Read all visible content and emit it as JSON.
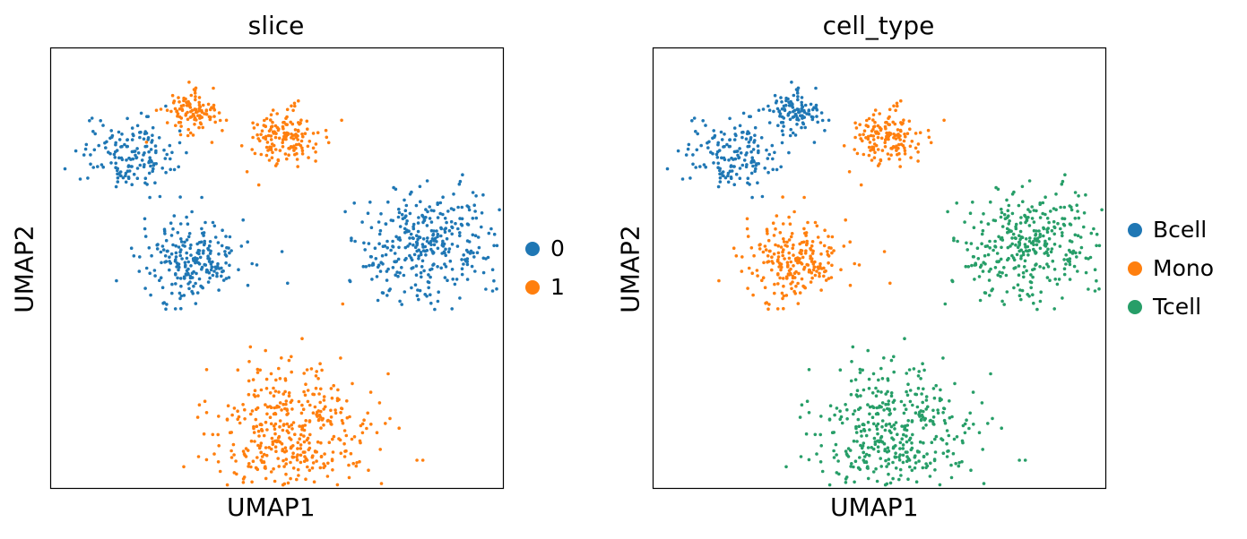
{
  "chart_data": [
    {
      "type": "scatter",
      "title": "slice",
      "xlabel": "UMAP1",
      "ylabel": "UMAP2",
      "grid": false,
      "legend_placement": "right",
      "legend": [
        {
          "label": "0",
          "color": "#1f77b4"
        },
        {
          "label": "1",
          "color": "#ff7f0e"
        }
      ],
      "clusters": [
        {
          "name": "top-left",
          "color": "#1f77b4",
          "x": 0.17,
          "y": 0.76,
          "spread": 0.05,
          "n": 160
        },
        {
          "name": "top-small",
          "color": "#ff7f0e",
          "x": 0.31,
          "y": 0.85,
          "spread": 0.03,
          "n": 110
        },
        {
          "name": "top-mid",
          "color": "#ff7f0e",
          "x": 0.52,
          "y": 0.8,
          "spread": 0.04,
          "n": 150
        },
        {
          "name": "mid-left",
          "color": "#1f77b4",
          "x": 0.31,
          "y": 0.52,
          "spread": 0.06,
          "n": 230
        },
        {
          "name": "right",
          "color": "#1f77b4",
          "x": 0.84,
          "y": 0.55,
          "spread": 0.08,
          "n": 360
        },
        {
          "name": "bottom",
          "color": "#ff7f0e",
          "x": 0.53,
          "y": 0.13,
          "spread": 0.09,
          "n": 420
        }
      ]
    },
    {
      "type": "scatter",
      "title": "cell_type",
      "xlabel": "UMAP1",
      "ylabel": "UMAP2",
      "grid": false,
      "legend_placement": "right",
      "legend": [
        {
          "label": "Bcell",
          "color": "#1f77b4"
        },
        {
          "label": "Mono",
          "color": "#ff7f0e"
        },
        {
          "label": "Tcell",
          "color": "#279e68"
        }
      ],
      "clusters": [
        {
          "name": "top-left",
          "color": "#1f77b4",
          "x": 0.17,
          "y": 0.76,
          "spread": 0.05,
          "n": 160
        },
        {
          "name": "top-small",
          "color": "#1f77b4",
          "x": 0.31,
          "y": 0.85,
          "spread": 0.03,
          "n": 110
        },
        {
          "name": "top-mid",
          "color": "#ff7f0e",
          "x": 0.52,
          "y": 0.8,
          "spread": 0.04,
          "n": 150
        },
        {
          "name": "mid-left",
          "color": "#ff7f0e",
          "x": 0.31,
          "y": 0.52,
          "spread": 0.06,
          "n": 230
        },
        {
          "name": "right",
          "color": "#279e68",
          "x": 0.84,
          "y": 0.55,
          "spread": 0.08,
          "n": 360
        },
        {
          "name": "bottom",
          "color": "#279e68",
          "x": 0.53,
          "y": 0.13,
          "spread": 0.09,
          "n": 420
        }
      ]
    }
  ]
}
